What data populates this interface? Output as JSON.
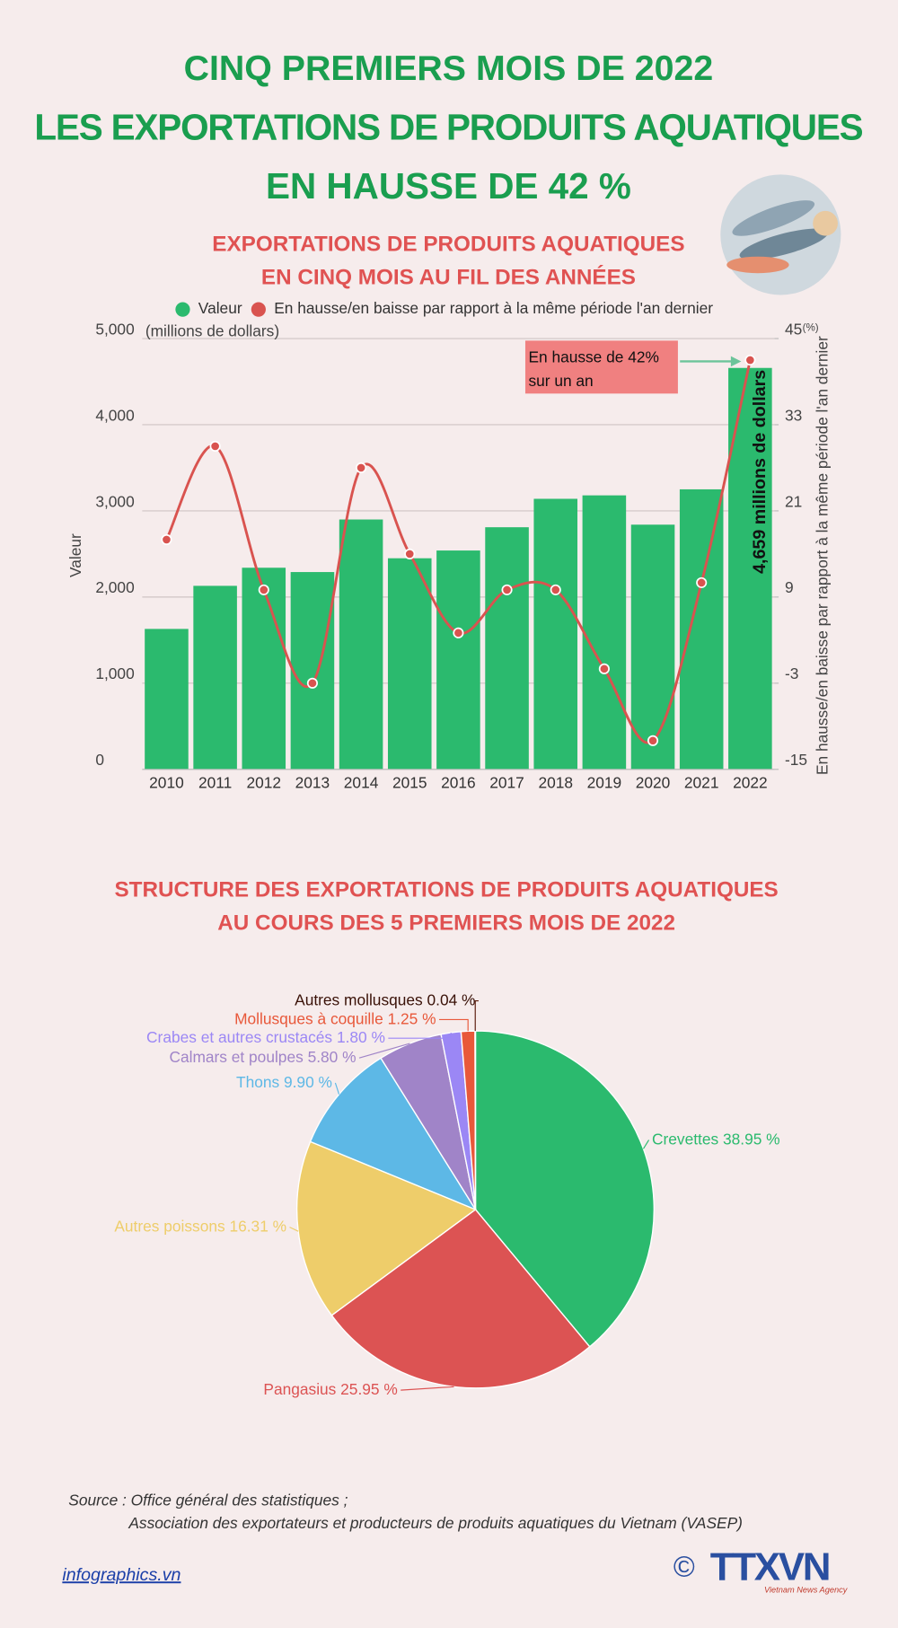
{
  "header": {
    "title_lines": [
      "CINQ PREMIERS MOIS DE 2022",
      "LES EXPORTATIONS DE PRODUITS AQUATIQUES",
      "EN HAUSSE DE 42 %"
    ]
  },
  "chart_data": [
    {
      "type": "bar-line",
      "title_lines": [
        "EXPORTATIONS DE PRODUITS AQUATIQUES",
        "EN CINQ MOIS AU FIL DES ANNÉES"
      ],
      "categories": [
        "2010",
        "2011",
        "2012",
        "2013",
        "2014",
        "2015",
        "2016",
        "2017",
        "2018",
        "2019",
        "2020",
        "2021",
        "2022"
      ],
      "series": [
        {
          "name": "Valeur",
          "color": "#2bba6e",
          "values": [
            1630,
            2130,
            2340,
            2290,
            2900,
            2450,
            2540,
            2810,
            3140,
            3180,
            2840,
            3250,
            4659
          ],
          "value_labels": [
            null,
            null,
            null,
            null,
            null,
            null,
            null,
            null,
            null,
            null,
            null,
            null,
            "4,659 millions de dollars"
          ]
        },
        {
          "name": "En hausse/en baisse par rapport à la même période l'an dernier",
          "color": "#d9534f",
          "axis": "y2",
          "values": [
            17,
            30,
            10,
            -3,
            27,
            15,
            4,
            10,
            10,
            -1,
            -11,
            11,
            42
          ]
        }
      ],
      "ylabel": "Valeur",
      "yunit": "(millions de dollars)",
      "y2label": "En hausse/en baisse par rapport à la même période l'an dernier",
      "y2unit": "(%)",
      "ylim": [
        0,
        5000
      ],
      "yticks": [
        0,
        {
          "value": 1000,
          "label": "1,000"
        },
        {
          "value": 2000,
          "label": "2,000"
        },
        {
          "value": 3000,
          "label": "3,000"
        },
        {
          "value": 4000,
          "label": "4,000"
        },
        {
          "value": 5000,
          "label": "5,000"
        }
      ],
      "y2lim": [
        -15,
        45
      ],
      "y2ticks": [
        -15,
        -3,
        9,
        21,
        33,
        45
      ],
      "grid": true,
      "annotation": {
        "lines": [
          "En hausse de 42%",
          "sur un an"
        ]
      }
    },
    {
      "type": "pie",
      "title_lines": [
        "STRUCTURE DES EXPORTATIONS DE PRODUITS AQUATIQUES",
        "AU COURS DES 5 PREMIERS MOIS DE 2022"
      ],
      "categories": [
        "Crevettes",
        "Pangasius",
        "Autres poissons",
        "Thons",
        "Calmars et poulpes",
        "Crabes et autres crustacés",
        "Mollusques à coquille",
        "Autres mollusques"
      ],
      "values": [
        38.95,
        25.95,
        16.31,
        9.9,
        5.8,
        1.8,
        1.25,
        0.04
      ],
      "value_labels": [
        "38.95 %",
        "25.95 %",
        "16.31 %",
        "9.90 %",
        "5.80 %",
        "1.80 %",
        "1.25 %",
        "0.04 %"
      ],
      "colors": [
        "#2bba6e",
        "#dc5353",
        "#eecd6a",
        "#5db8e6",
        "#a084c8",
        "#9b87f5",
        "#e8583a",
        "#5a1a0a"
      ]
    }
  ],
  "footer": {
    "source_lines": [
      "Source : Office général des statistiques ;",
      "Association des exportateurs et producteurs de produits aquatiques du Vietnam (VASEP)"
    ],
    "website": "infographics.vn",
    "logo": {
      "copyright": "©",
      "name": "TTXVN",
      "subtitle": "Vietnam News Agency"
    }
  }
}
